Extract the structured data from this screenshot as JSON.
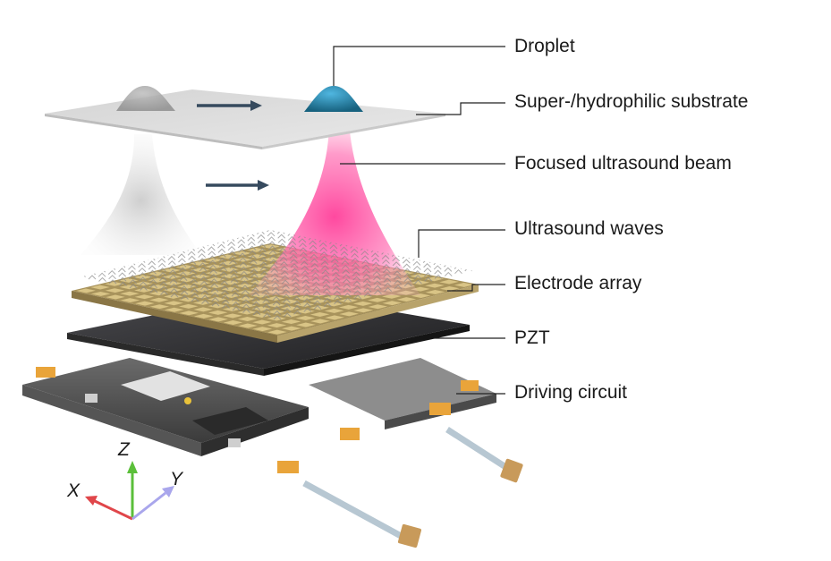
{
  "labels": {
    "droplet": "Droplet",
    "substrate": "Super-/hydrophilic substrate",
    "beam": "Focused ultrasound beam",
    "waves": "Ultrasound waves",
    "electrode": "Electrode array",
    "pzt": "PZT",
    "circuit": "Driving circuit"
  },
  "axes": {
    "x": "X",
    "y": "Y",
    "z": "Z"
  },
  "colors": {
    "droplet": "#1f7fa8",
    "beam": "#ff3f9a",
    "electrode": "#c9b477",
    "pzt": "#2b2b2d",
    "arrow": "#364a5e",
    "axis_x": "#e0464a",
    "axis_y": "#a9a6ec",
    "axis_z": "#5bbf3a"
  }
}
